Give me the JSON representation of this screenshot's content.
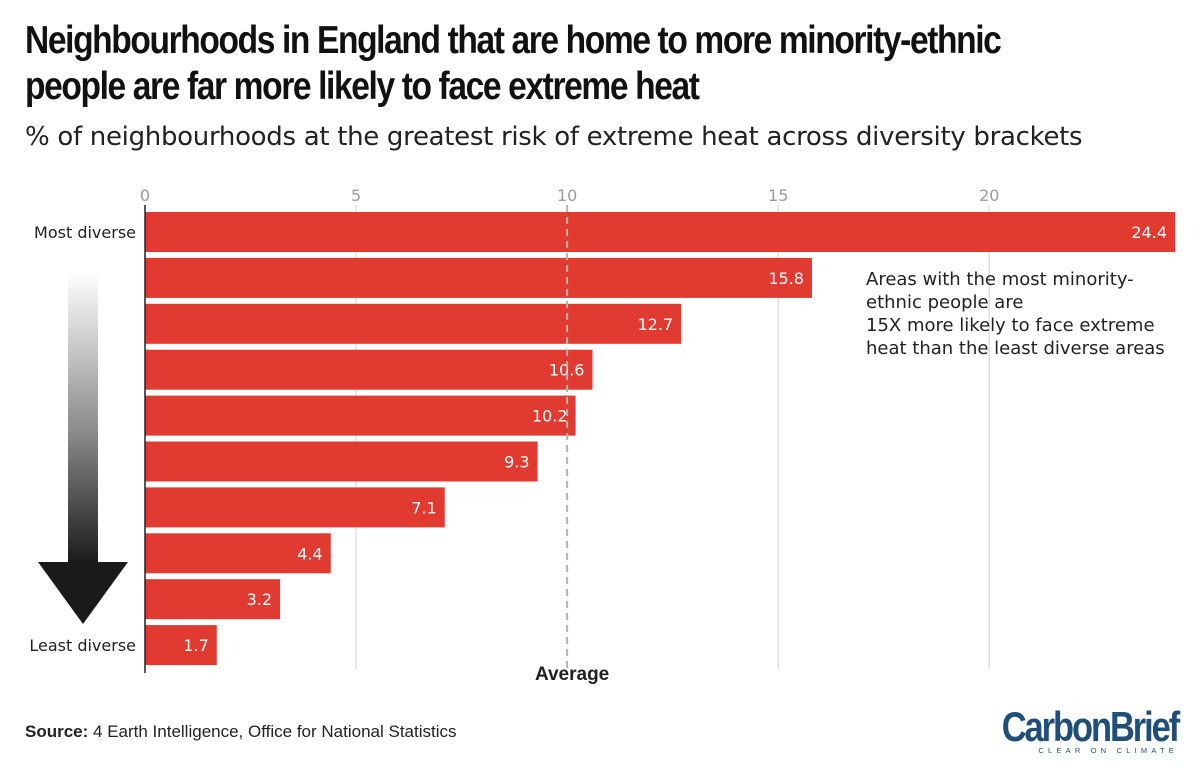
{
  "header": {
    "title": "Neighbourhoods in England that are home to more minority-ethnic people are far more likely to face extreme heat",
    "subtitle": "% of neighbourhoods at the greatest risk of extreme heat across diversity brackets"
  },
  "footer": {
    "source_label": "Source:",
    "source_text": " 4 Earth Intelligence, Office for National Statistics",
    "logo_text": "CarbonBrief",
    "logo_tagline": "CLEAR ON CLIMATE"
  },
  "colors": {
    "bar": "#e03a31",
    "grid": "#d9d9d9",
    "average_line": "#b3b3b3",
    "axis": "#222222",
    "tick_label": "#9b9b9b",
    "brand": "#1f4f78"
  },
  "chart_data": {
    "type": "bar",
    "orientation": "horizontal",
    "title": "% of neighbourhoods at the greatest risk of extreme heat across diversity brackets",
    "categories": [
      "Most diverse",
      "",
      "",
      "",
      "",
      "",
      "",
      "",
      "",
      "Least diverse"
    ],
    "values": [
      24.4,
      15.8,
      12.7,
      10.6,
      10.2,
      9.3,
      7.1,
      4.4,
      3.2,
      1.7
    ],
    "value_labels": [
      "24.4",
      "15.8",
      "12.7",
      "10.6",
      "10.2",
      "9.3",
      "7.1",
      "4.4",
      "3.2",
      "1.7"
    ],
    "xlim": [
      0,
      24.4
    ],
    "xticks": [
      0,
      5,
      10,
      15,
      20
    ],
    "xtick_labels": [
      "0",
      "5",
      "10",
      "15",
      "20"
    ],
    "grid": true,
    "reference_line": {
      "value": 10,
      "label": "Average",
      "style": "dashed"
    },
    "annotation": "Areas with the most minority-ethnic people are 15X more likely to face extreme heat than the least diverse areas",
    "category_arrow": {
      "from": "Most diverse",
      "to": "Least diverse",
      "direction": "down"
    }
  }
}
